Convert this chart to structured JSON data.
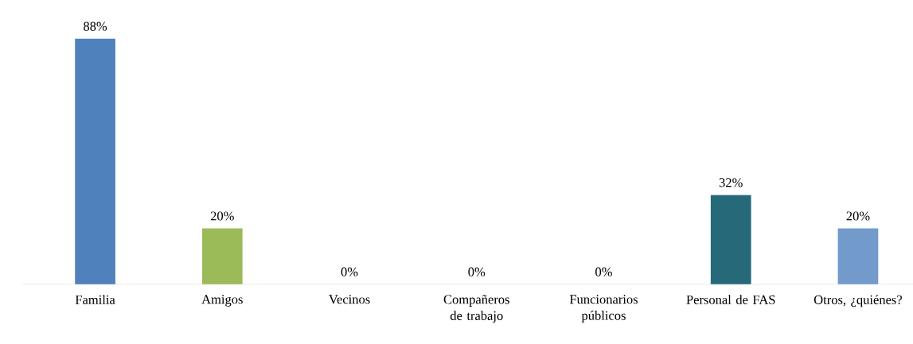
{
  "chart_data": {
    "type": "bar",
    "categories": [
      "Familia",
      "Amigos",
      "Vecinos",
      "Compañeros de trabajo",
      "Funcionarios públicos",
      "Personal de FAS",
      "Otros, ¿quiénes?"
    ],
    "values": [
      88,
      20,
      0,
      0,
      0,
      32,
      20
    ],
    "value_labels": [
      "88%",
      "20%",
      "0%",
      "0%",
      "0%",
      "32%",
      "20%"
    ],
    "colors": [
      "#4f81bd",
      "#9bbb59",
      "#8064a2",
      "#4bacc6",
      "#f79646",
      "#266a7a",
      "#729aca"
    ]
  }
}
